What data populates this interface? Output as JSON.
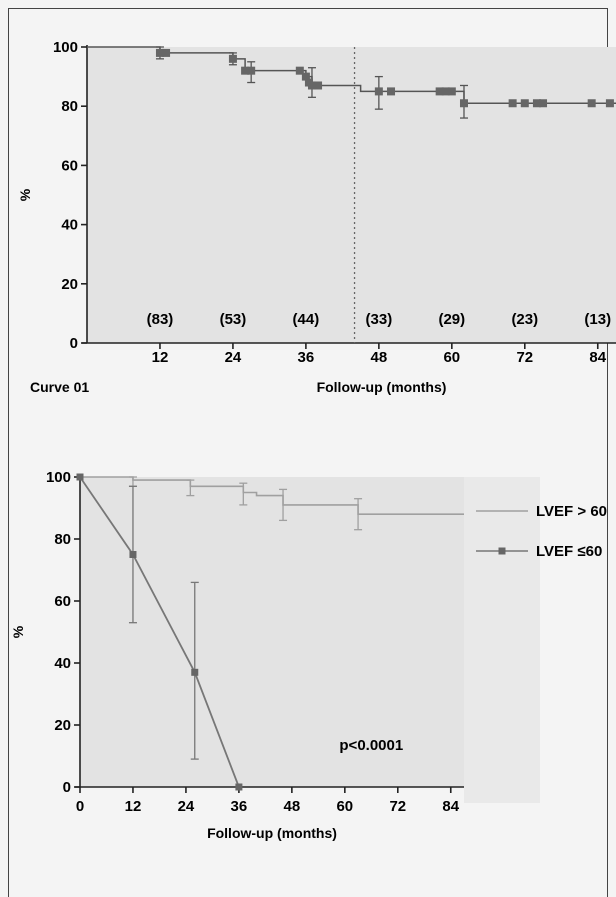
{
  "chart_data": [
    {
      "type": "line",
      "title": "",
      "panel_label": "Curve 01",
      "xlabel": "Follow-up (months)",
      "ylabel": "%",
      "xlim": [
        0,
        87
      ],
      "ylim": [
        0,
        100
      ],
      "x_ticks": [
        12,
        24,
        36,
        48,
        60,
        72,
        84
      ],
      "x_tick_labels": [
        "12",
        "24",
        "36",
        "48",
        "60",
        "72",
        "84"
      ],
      "y_ticks": [
        0,
        20,
        40,
        60,
        80,
        100
      ],
      "y_tick_labels": [
        "0",
        "20",
        "40",
        "60",
        "80",
        "100"
      ],
      "grid": false,
      "series": [
        {
          "name": "",
          "color": "#555555",
          "step_points": [
            [
              0,
              100
            ],
            [
              12,
              98
            ],
            [
              24,
              96
            ],
            [
              26,
              92
            ],
            [
              35,
              92
            ],
            [
              36,
              90
            ],
            [
              37,
              87
            ],
            [
              45,
              85
            ],
            [
              48,
              85
            ],
            [
              60,
              85
            ],
            [
              62,
              81
            ],
            [
              87,
              81
            ]
          ],
          "censor_marks": [
            [
              12,
              98
            ],
            [
              13,
              98
            ],
            [
              24,
              96
            ],
            [
              26,
              92
            ],
            [
              27,
              92
            ],
            [
              35,
              92
            ],
            [
              36,
              90
            ],
            [
              36.5,
              88
            ],
            [
              37,
              87
            ],
            [
              38,
              87
            ],
            [
              48,
              85
            ],
            [
              50,
              85
            ],
            [
              58,
              85
            ],
            [
              59,
              85
            ],
            [
              60,
              85
            ],
            [
              62,
              81
            ],
            [
              70,
              81
            ],
            [
              72,
              81
            ],
            [
              74,
              81
            ],
            [
              75,
              81
            ],
            [
              83,
              81
            ],
            [
              86,
              81
            ]
          ],
          "error_bars": [
            [
              12,
              96,
              100
            ],
            [
              24,
              94,
              98
            ],
            [
              27,
              88,
              95
            ],
            [
              37,
              83,
              93
            ],
            [
              48,
              79,
              90
            ],
            [
              62,
              76,
              87
            ]
          ]
        }
      ],
      "annotations": {
        "numbers_at_risk": [
          {
            "x": 12,
            "label": "(83)"
          },
          {
            "x": 24,
            "label": "(53)"
          },
          {
            "x": 36,
            "label": "(44)"
          },
          {
            "x": 48,
            "label": "(33)"
          },
          {
            "x": 60,
            "label": "(29)"
          },
          {
            "x": 72,
            "label": "(23)"
          },
          {
            "x": 84,
            "label": "(13)"
          }
        ],
        "dotted_vertical_line_x": 44
      }
    },
    {
      "type": "line",
      "title": "",
      "xlabel": "Follow-up (months)",
      "ylabel": "%",
      "xlim": [
        0,
        87
      ],
      "ylim": [
        0,
        100
      ],
      "x_ticks": [
        0,
        12,
        24,
        36,
        48,
        60,
        72,
        84
      ],
      "x_tick_labels": [
        "0",
        "12",
        "24",
        "36",
        "48",
        "60",
        "72",
        "84"
      ],
      "y_ticks": [
        0,
        20,
        40,
        60,
        80,
        100
      ],
      "y_tick_labels": [
        "0",
        "20",
        "40",
        "60",
        "80",
        "100"
      ],
      "grid": false,
      "legend": "right",
      "series": [
        {
          "name": "LVEF > 60",
          "color": "#a0a0a0",
          "step_points": [
            [
              0,
              100
            ],
            [
              12,
              99
            ],
            [
              24,
              99
            ],
            [
              25,
              97
            ],
            [
              36,
              97
            ],
            [
              37,
              95
            ],
            [
              40,
              94
            ],
            [
              46,
              91
            ],
            [
              62,
              91
            ],
            [
              63,
              88
            ],
            [
              87,
              88
            ]
          ],
          "error_bars": [
            [
              12,
              97,
              100
            ],
            [
              25,
              94,
              99
            ],
            [
              37,
              91,
              98
            ],
            [
              46,
              86,
              96
            ],
            [
              63,
              83,
              93
            ]
          ]
        },
        {
          "name": "LVEF ≤60",
          "color": "#777777",
          "points": [
            [
              0,
              100
            ],
            [
              12,
              75
            ],
            [
              26,
              37
            ],
            [
              36,
              0
            ]
          ],
          "error_bars": [
            [
              12,
              53,
              97
            ],
            [
              26,
              9,
              66
            ]
          ]
        }
      ],
      "annotations": {
        "p_value": "p<0.0001"
      }
    }
  ]
}
